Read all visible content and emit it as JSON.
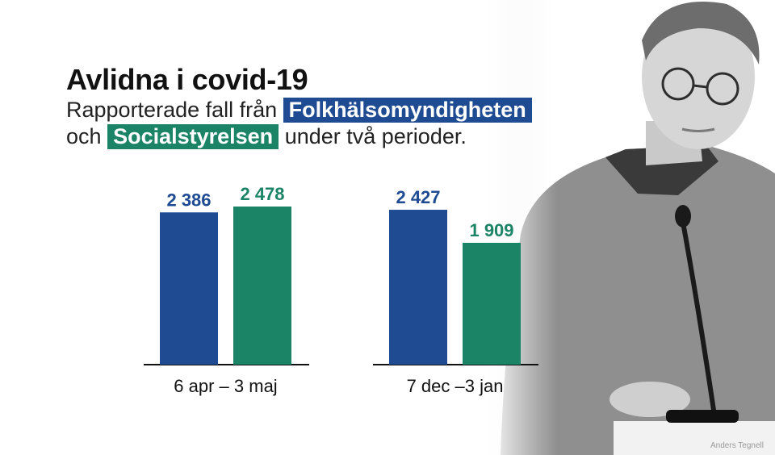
{
  "title": "Avlidna i covid-19",
  "subtitle": {
    "line1_prefix": "Rapporterade fall från",
    "line2_prefix": "och",
    "line2_suffix": "under två perioder."
  },
  "credit": "Anders Tegnell",
  "colors": {
    "fohm": "#1f4b93",
    "socialstyrelsen": "#1b8466",
    "axis": "#111111"
  },
  "chart_data": {
    "type": "bar",
    "categories": [
      "6 apr – 3 maj",
      "7 dec –3 jan"
    ],
    "series": [
      {
        "name": "Folkhälsomyndigheten",
        "values": [
          2386,
          2427
        ],
        "labels": [
          "2 386",
          "2 427"
        ]
      },
      {
        "name": "Socialstyrelsen",
        "values": [
          2478,
          1909
        ],
        "labels": [
          "2 478",
          "1 909"
        ]
      }
    ],
    "ylim": [
      0,
      2478
    ],
    "grid": false,
    "legend": "subtitle"
  }
}
